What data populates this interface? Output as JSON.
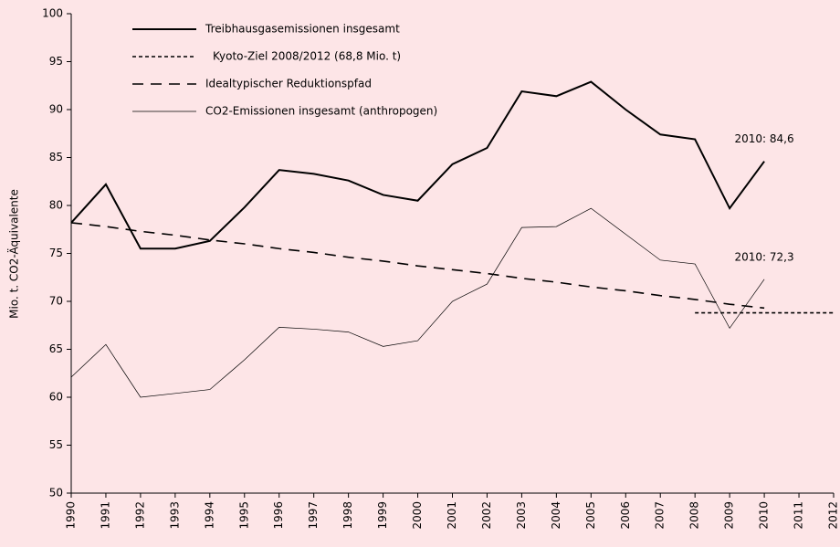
{
  "chart_data": {
    "type": "line",
    "ylabel": "Mio. t. CO2-Äquivalente",
    "categories": [
      "1990",
      "1991",
      "1992",
      "1993",
      "1994",
      "1995",
      "1996",
      "1997",
      "1998",
      "1999",
      "2000",
      "2001",
      "2002",
      "2003",
      "2004",
      "2005",
      "2006",
      "2007",
      "2008",
      "2009",
      "2010",
      "2011",
      "2012"
    ],
    "ylim": [
      50,
      100
    ],
    "yticks": [
      50,
      55,
      60,
      65,
      70,
      75,
      80,
      85,
      90,
      95,
      100
    ],
    "series": [
      {
        "name": "Treibhausgasemissionen insgesamt",
        "color": "#000000",
        "style": "solid",
        "width": 2,
        "values": [
          78.2,
          82.2,
          75.5,
          75.5,
          76.3,
          79.8,
          83.7,
          83.3,
          82.6,
          81.1,
          80.5,
          84.3,
          86.0,
          91.9,
          91.4,
          92.9,
          90.0,
          87.4,
          86.9,
          79.7,
          84.6,
          null,
          null
        ],
        "annotation": "2010: 84,6"
      },
      {
        "name": "Kyoto-Ziel 2008/2012 (68,8 Mio. t)",
        "color": "#000000",
        "style": "dotted",
        "width": 1.6,
        "values": [
          null,
          null,
          null,
          null,
          null,
          null,
          null,
          null,
          null,
          null,
          null,
          null,
          null,
          null,
          null,
          null,
          null,
          null,
          68.8,
          68.8,
          68.8,
          68.8,
          68.8
        ]
      },
      {
        "name": "Idealtypischer Reduktionspfad",
        "color": "#000000",
        "style": "dashed",
        "width": 1.6,
        "values": [
          78.2,
          77.8,
          77.3,
          76.9,
          76.4,
          76.0,
          75.5,
          75.1,
          74.6,
          74.2,
          73.7,
          73.3,
          72.9,
          72.4,
          72.0,
          71.5,
          71.1,
          70.6,
          70.2,
          69.7,
          69.3,
          null,
          null
        ]
      },
      {
        "name": "CO2-Emissionen insgesamt (anthropogen)",
        "color": "#000000",
        "style": "solid",
        "width": 0.7,
        "values": [
          62.1,
          65.5,
          60.0,
          60.4,
          60.8,
          63.9,
          67.3,
          67.1,
          66.8,
          65.3,
          65.9,
          70.0,
          71.8,
          77.7,
          77.8,
          79.7,
          77.0,
          74.3,
          73.9,
          67.2,
          72.3,
          null,
          null
        ],
        "annotation": "2010: 72,3"
      }
    ]
  }
}
